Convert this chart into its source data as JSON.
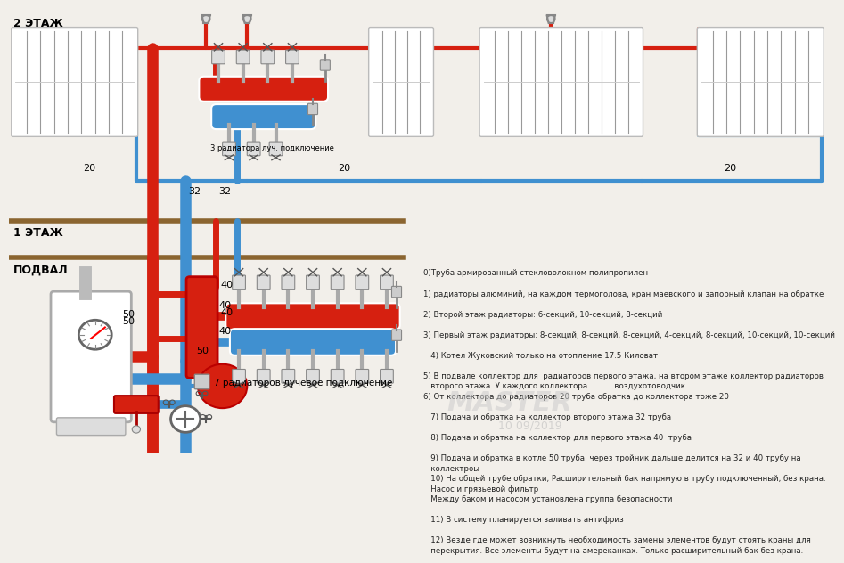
{
  "bg_color": "#f2efea",
  "red": "#d62010",
  "blue": "#4090d0",
  "gray": "#999999",
  "brown": "#8B6530",
  "lw50": 9,
  "lw40": 7,
  "lw32": 5,
  "lw20": 3,
  "lw_rad": 2,
  "notes": [
    "0)Труба армированный стекловолокном полипропилен",
    "1) радиаторы алюминий, на каждом термоголова, кран маевского и запорный клапан на обратке",
    "2) Второй этаж радиаторы: 6-секций, 10-секций, 8-секций",
    "3) Первый этаж радиаторы: 8-секций, 8-секций, 8-секций, 4-секций, 8-секций, 10-секций, 10-секций",
    "   4) Котел Жуковский только на отопление 17.5 Киловат",
    "5) В подвале коллектор для  радиаторов первого этажа, на втором этаже коллектор радиаторов\n   второго этажа. У каждого коллектора           воздухотоводчик",
    "6) От коллектора до радиаторов 20 труба обратка до коллектора тоже 20",
    "   7) Подача и обратка на коллектор второго этажа 32 труба",
    "   8) Подача и обратка на коллектор для первого этажа 40  труба",
    "   9) Подача и обратка в котле 50 труба, через тройник дальше делится на 32 и 40 трубу на\n   коллектроы",
    "   10) На общей трубе обратки, Расширительный бак напрямую в трубу подключенный, без крана.\n   Насос и грязьевой фильтр",
    "   Между баком и насосом установлена группа безопасности",
    "   11) В систему планируется заливать антифриз",
    "   12) Везде где может возникнуть необходимость замены элементов будут стоять краны для\n   перекрытия. Все элементы будут на амереканках. Только расширительный бак без крана."
  ]
}
